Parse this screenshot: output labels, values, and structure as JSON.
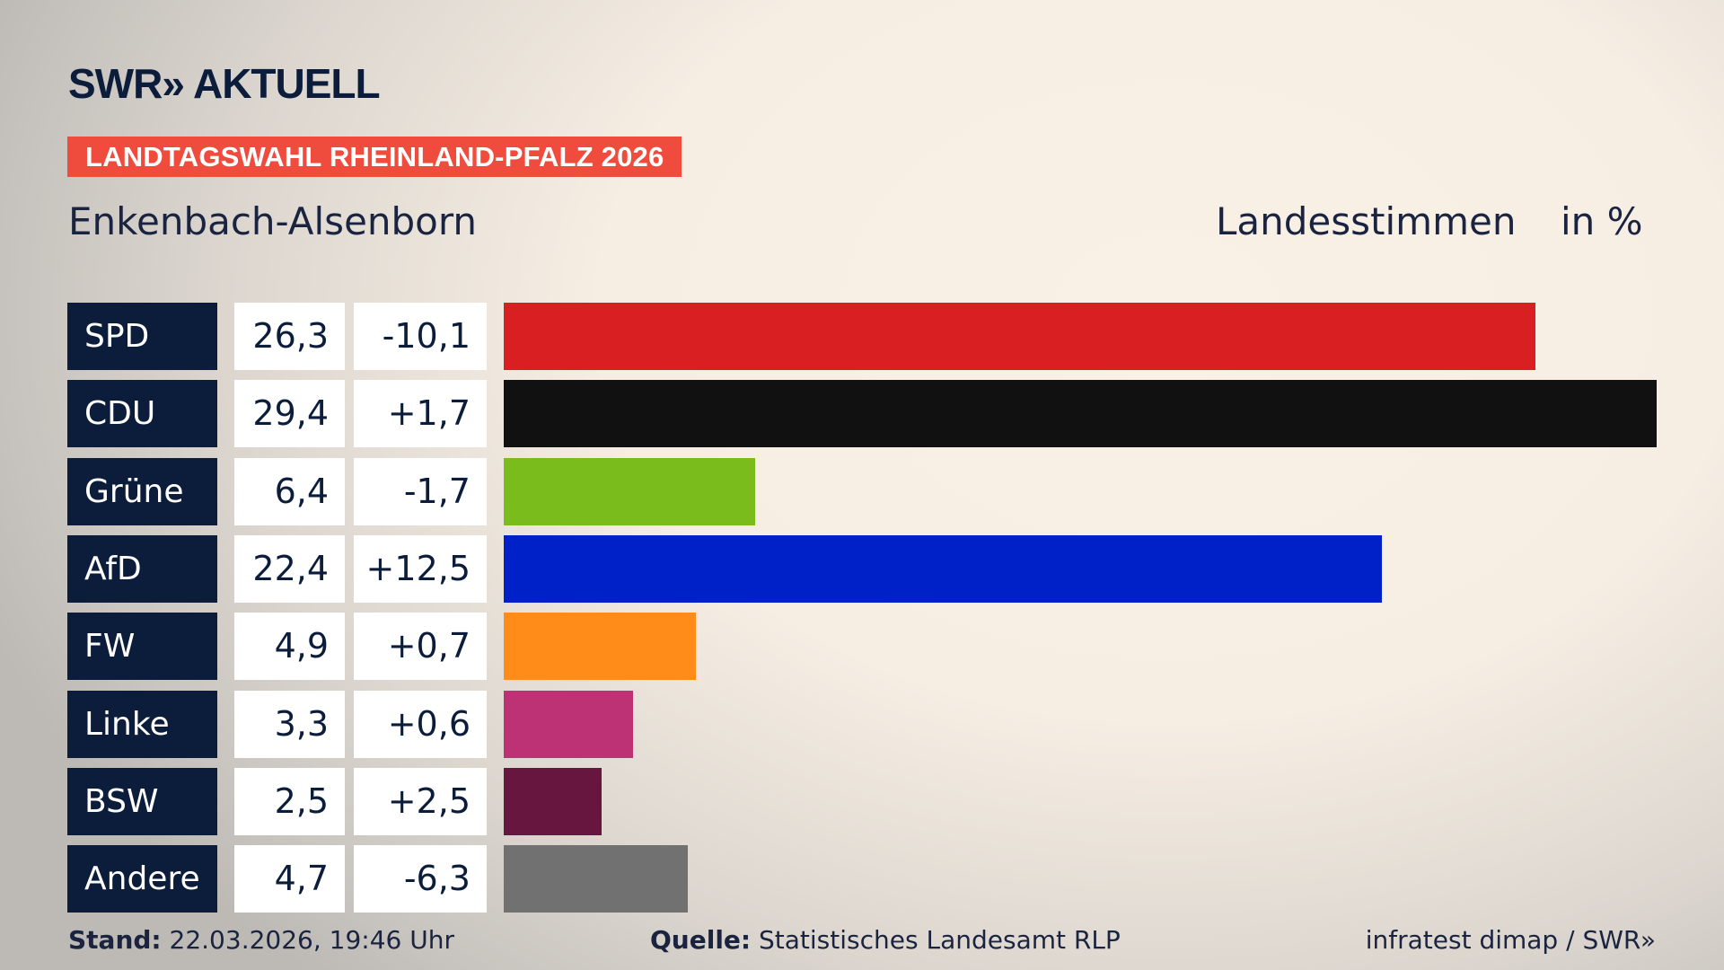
{
  "logo": "SWR» AKTUELL",
  "banner": "LANDTAGSWAHL RHEINLAND-PFALZ 2026",
  "region": "Enkenbach-Alsenborn",
  "metric": "Landesstimmen",
  "unit": "in %",
  "chart_data": {
    "type": "bar",
    "orientation": "horizontal",
    "categories": [
      "SPD",
      "CDU",
      "Grüne",
      "AfD",
      "FW",
      "Linke",
      "BSW",
      "Andere"
    ],
    "values": [
      26.3,
      29.4,
      6.4,
      22.4,
      4.9,
      3.3,
      2.5,
      4.7
    ],
    "value_labels": [
      "26,3",
      "29,4",
      "6,4",
      "22,4",
      "4,9",
      "3,3",
      "2,5",
      "4,7"
    ],
    "diff_labels": [
      "-10,1",
      "+1,7",
      "-1,7",
      "+12,5",
      "+0,7",
      "+0,6",
      "+2,5",
      "-6,3"
    ],
    "colors": [
      "#d91f21",
      "#111111",
      "#79bc1c",
      "#0020c8",
      "#ff8c19",
      "#bd3274",
      "#67173f",
      "#717171"
    ],
    "xlim": [
      0,
      29.4
    ]
  },
  "footer": {
    "stand_label": "Stand:",
    "stand_value": "22.03.2026, 19:46 Uhr",
    "source_label": "Quelle:",
    "source_value": "Statistisches Landesamt RLP",
    "credit": "infratest dimap / SWR»"
  }
}
